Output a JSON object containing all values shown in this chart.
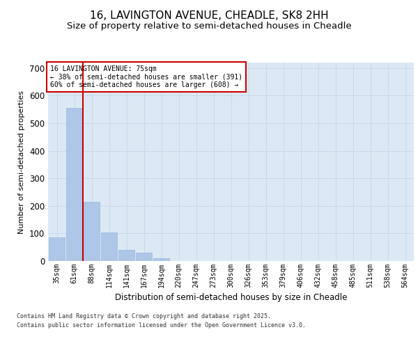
{
  "title_line1": "16, LAVINGTON AVENUE, CHEADLE, SK8 2HH",
  "title_line2": "Size of property relative to semi-detached houses in Cheadle",
  "xlabel": "Distribution of semi-detached houses by size in Cheadle",
  "ylabel": "Number of semi-detached properties",
  "categories": [
    "35sqm",
    "61sqm",
    "88sqm",
    "114sqm",
    "141sqm",
    "167sqm",
    "194sqm",
    "220sqm",
    "247sqm",
    "273sqm",
    "300sqm",
    "326sqm",
    "353sqm",
    "379sqm",
    "406sqm",
    "432sqm",
    "458sqm",
    "485sqm",
    "511sqm",
    "538sqm",
    "564sqm"
  ],
  "values": [
    85,
    555,
    215,
    103,
    40,
    30,
    10,
    0,
    0,
    0,
    0,
    0,
    0,
    0,
    0,
    0,
    0,
    0,
    0,
    0,
    0
  ],
  "bar_color": "#aec6e8",
  "bar_edge_color": "#9ab8d8",
  "grid_color": "#c8d8ea",
  "bg_color": "#dce9f5",
  "vline_color": "#cc0000",
  "vline_x": 1.5,
  "annotation_text": "16 LAVINGTON AVENUE: 75sqm\n← 38% of semi-detached houses are smaller (391)\n60% of semi-detached houses are larger (608) →",
  "annotation_box_color": "#cc0000",
  "ylim": [
    0,
    720
  ],
  "yticks": [
    0,
    100,
    200,
    300,
    400,
    500,
    600,
    700
  ],
  "footer_line1": "Contains HM Land Registry data © Crown copyright and database right 2025.",
  "footer_line2": "Contains public sector information licensed under the Open Government Licence v3.0.",
  "title_fontsize": 11,
  "subtitle_fontsize": 9.5
}
